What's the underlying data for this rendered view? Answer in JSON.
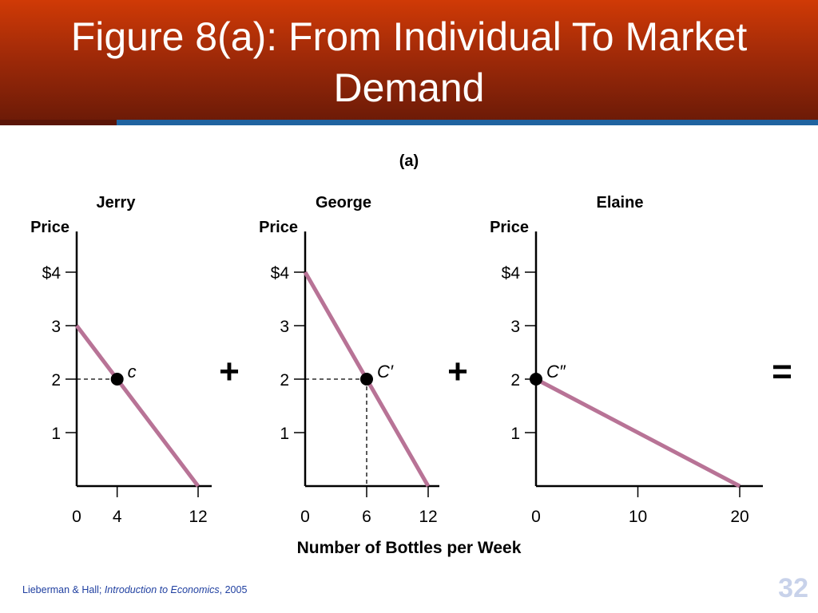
{
  "slide": {
    "title_line1": "Figure 8(a):  From Individual To Market",
    "title_line2": "Demand",
    "footer_authors": "Lieberman & Hall; ",
    "footer_book": "Introduction to Economics",
    "footer_year": ", 2005",
    "page_number": "32"
  },
  "chart_data": {
    "type": "line",
    "panel_label": "(a)",
    "xlabel": "Number of Bottles per Week",
    "operators": [
      "+",
      "+",
      "="
    ],
    "colors": {
      "demand_line": "#b87396",
      "header": "#a52a0a",
      "accent_bar": "#1f63a0"
    },
    "panels": [
      {
        "name": "Jerry",
        "ylabel": "Price",
        "y_ticks": [
          "$4",
          "3",
          "2",
          "1"
        ],
        "y_tick_values": [
          4,
          3,
          2,
          1
        ],
        "x_ticks": [
          "0",
          "4",
          "12"
        ],
        "x_tick_values": [
          0,
          4,
          12
        ],
        "xlim": [
          0,
          12
        ],
        "ylim": [
          0,
          4
        ],
        "line": [
          [
            0,
            3
          ],
          [
            12,
            0
          ]
        ],
        "point": {
          "label": "c",
          "x": 4,
          "y": 2
        },
        "guides": [
          "horizontal"
        ]
      },
      {
        "name": "George",
        "ylabel": "Price",
        "y_ticks": [
          "$4",
          "3",
          "2",
          "1"
        ],
        "y_tick_values": [
          4,
          3,
          2,
          1
        ],
        "x_ticks": [
          "0",
          "6",
          "12"
        ],
        "x_tick_values": [
          0,
          6,
          12
        ],
        "xlim": [
          0,
          12
        ],
        "ylim": [
          0,
          4
        ],
        "line": [
          [
            0,
            4
          ],
          [
            12,
            0
          ]
        ],
        "point": {
          "label": "C′",
          "x": 6,
          "y": 2
        },
        "guides": [
          "horizontal",
          "vertical"
        ]
      },
      {
        "name": "Elaine",
        "ylabel": "Price",
        "y_ticks": [
          "$4",
          "3",
          "2",
          "1"
        ],
        "y_tick_values": [
          4,
          3,
          2,
          1
        ],
        "x_ticks": [
          "0",
          "10",
          "20"
        ],
        "x_tick_values": [
          0,
          10,
          20
        ],
        "xlim": [
          0,
          20
        ],
        "ylim": [
          0,
          4
        ],
        "line": [
          [
            0,
            2
          ],
          [
            20,
            0
          ]
        ],
        "point": {
          "label": "C″",
          "x": 0,
          "y": 2
        },
        "guides": []
      }
    ]
  }
}
